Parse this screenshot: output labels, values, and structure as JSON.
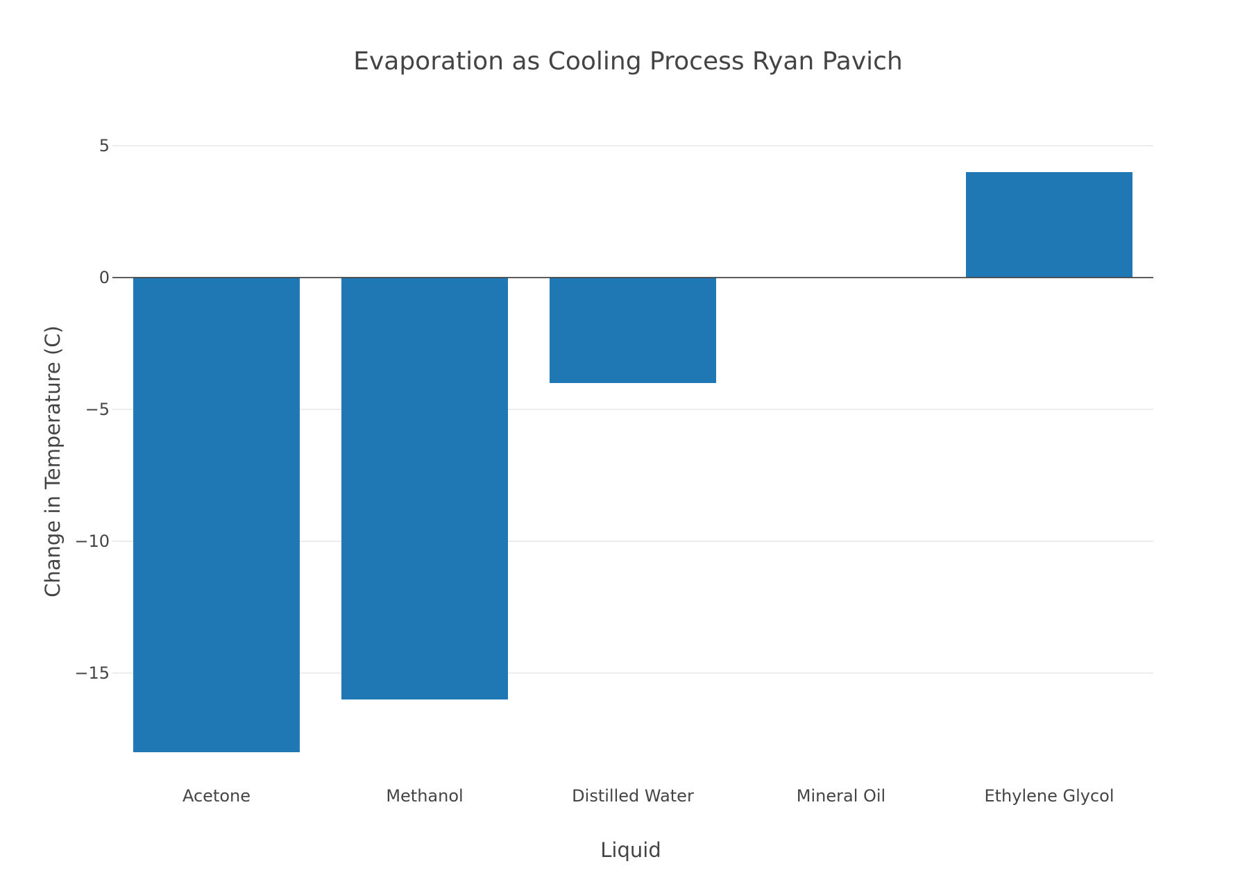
{
  "chart_data": {
    "type": "bar",
    "title": "Evaporation as Cooling Process Ryan Pavich",
    "xlabel": "Liquid",
    "ylabel": "Change in Temperature (C)",
    "categories": [
      "Acetone",
      "Methanol",
      "Distilled Water",
      "Mineral Oil",
      "Ethylene Glycol"
    ],
    "values": [
      -18,
      -16,
      -4,
      0,
      4
    ],
    "ylim": [
      -18.9,
      6.2
    ],
    "yticks": [
      5,
      0,
      -5,
      -10,
      -15
    ],
    "ytick_labels": [
      "5",
      "0",
      "−5",
      "−10",
      "−15"
    ],
    "grid": true,
    "legend": "none",
    "colors": {
      "bar": "#1f77b4"
    }
  }
}
